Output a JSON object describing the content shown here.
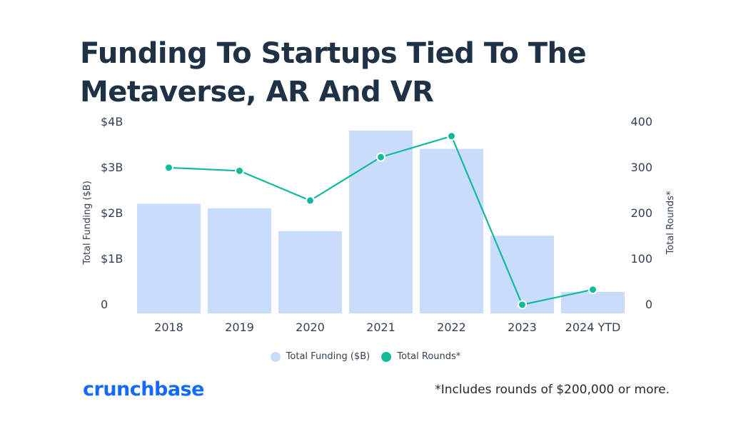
{
  "title": "Funding To Startups Tied To The Metaverse, AR And VR",
  "logo": "crunchbase",
  "footnote": "*Includes rounds of $200,000  or more.",
  "colors": {
    "title": "#1f3245",
    "bar": "#cadcfc",
    "line": "#12b99a",
    "logo": "#146aff"
  },
  "legend": {
    "position": "bottom-center",
    "items": [
      {
        "label": "Total Funding ($B)",
        "color": "#cadcfc",
        "shape": "circle"
      },
      {
        "label": "Total Rounds*",
        "color": "#12b99a",
        "shape": "circle"
      }
    ]
  },
  "chart_data": {
    "type": "bar",
    "title": "Funding To Startups Tied To The Metaverse, AR And VR",
    "categories": [
      "2018",
      "2019",
      "2020",
      "2021",
      "2022",
      "2023",
      "2024 YTD"
    ],
    "series": [
      {
        "name": "Total Funding ($B)",
        "type": "bar",
        "axis": "left",
        "values": [
          2.4,
          2.3,
          1.8,
          4.0,
          3.6,
          1.7,
          0.47
        ]
      },
      {
        "name": "Total Rounds*",
        "type": "line",
        "axis": "right",
        "values": [
          319,
          312,
          247,
          342,
          388,
          19,
          52
        ]
      }
    ],
    "y_left": {
      "label": "Total Funding ($B)",
      "range": [
        0,
        4
      ],
      "ticks": [
        0,
        1,
        2,
        3,
        4
      ],
      "tick_labels": [
        "0",
        "$1B",
        "$2B",
        "$3B",
        "$4B"
      ]
    },
    "y_right": {
      "label": "Total Rounds*",
      "range": [
        0,
        400
      ],
      "ticks": [
        0,
        100,
        200,
        300,
        400
      ],
      "tick_labels": [
        "0",
        "100",
        "200",
        "300",
        "400"
      ]
    },
    "xlabel": "",
    "grid": false
  }
}
